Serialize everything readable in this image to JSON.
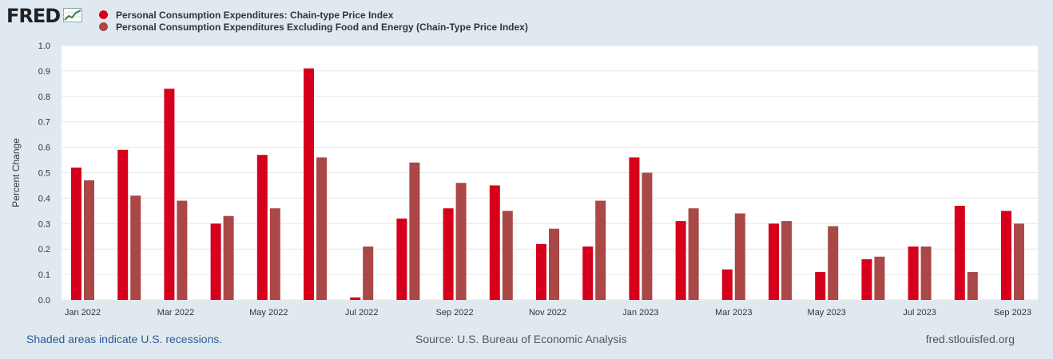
{
  "header": {
    "logo_text": "FRED",
    "logo_icon": "line-graph-icon"
  },
  "footer": {
    "recession_note": "Shaded areas indicate U.S. recessions.",
    "source": "Source: U.S. Bureau of Economic Analysis",
    "site": "fred.stlouisfed.org"
  },
  "chart_data": {
    "type": "bar",
    "title": "",
    "xlabel": "",
    "ylabel": "Percent Change",
    "ylim": [
      0,
      1.0
    ],
    "yticks": [
      "0.0",
      "0.1",
      "0.2",
      "0.3",
      "0.4",
      "0.5",
      "0.6",
      "0.7",
      "0.8",
      "0.9",
      "1.0"
    ],
    "grid": true,
    "legend_position": "top-left",
    "categories": [
      "Jan 2022",
      "Feb 2022",
      "Mar 2022",
      "Apr 2022",
      "May 2022",
      "Jun 2022",
      "Jul 2022",
      "Aug 2022",
      "Sep 2022",
      "Oct 2022",
      "Nov 2022",
      "Dec 2022",
      "Jan 2023",
      "Feb 2023",
      "Mar 2023",
      "Apr 2023",
      "May 2023",
      "Jun 2023",
      "Jul 2023",
      "Aug 2023",
      "Sep 2023"
    ],
    "tick_labels": [
      "Jan 2022",
      "Mar 2022",
      "May 2022",
      "Jul 2022",
      "Sep 2022",
      "Nov 2022",
      "Jan 2023",
      "Mar 2023",
      "May 2023",
      "Jul 2023",
      "Sep 2023"
    ],
    "series": [
      {
        "name": "Personal Consumption Expenditures: Chain-type Price Index",
        "color": "#d6001c",
        "values": [
          0.52,
          0.59,
          0.83,
          0.3,
          0.57,
          0.91,
          0.01,
          0.32,
          0.36,
          0.45,
          0.22,
          0.21,
          0.56,
          0.31,
          0.12,
          0.3,
          0.11,
          0.16,
          0.21,
          0.37,
          0.35
        ]
      },
      {
        "name": "Personal Consumption Expenditures Excluding Food and Energy (Chain-Type Price Index)",
        "color": "#a94846",
        "values": [
          0.47,
          0.41,
          0.39,
          0.33,
          0.36,
          0.56,
          0.21,
          0.54,
          0.46,
          0.35,
          0.28,
          0.39,
          0.5,
          0.36,
          0.34,
          0.31,
          0.29,
          0.17,
          0.21,
          0.11,
          0.3
        ]
      }
    ]
  }
}
